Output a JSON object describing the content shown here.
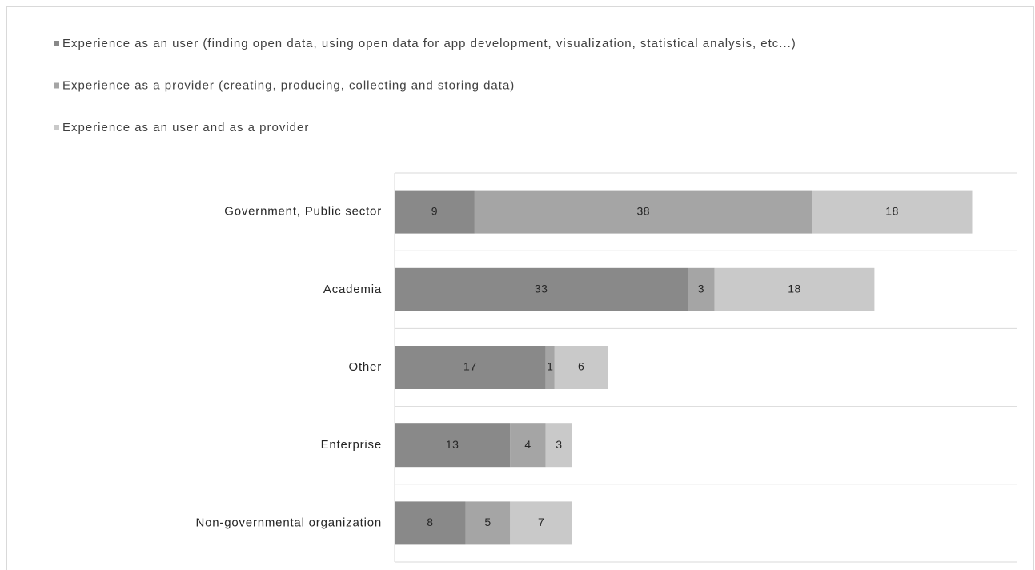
{
  "chart_data": {
    "type": "stacked-bar-horizontal",
    "categories": [
      "Government, Public sector",
      "Academia",
      "Other",
      "Enterprise",
      "Non-governmental organization"
    ],
    "series": [
      {
        "name": "Experience as an user (finding open data, using open data for app development, visualization, statistical analysis, etc...)",
        "color": "#898989",
        "values": [
          9,
          33,
          17,
          13,
          8
        ]
      },
      {
        "name": "Experience as a provider (creating, producing, collecting and storing data)",
        "color": "#a5a5a5",
        "values": [
          38,
          3,
          1,
          4,
          5
        ]
      },
      {
        "name": "Experience as an user and as a provider",
        "color": "#c9c9c9",
        "values": [
          18,
          18,
          6,
          3,
          7
        ]
      }
    ],
    "xlim": [
      0,
      70
    ]
  }
}
